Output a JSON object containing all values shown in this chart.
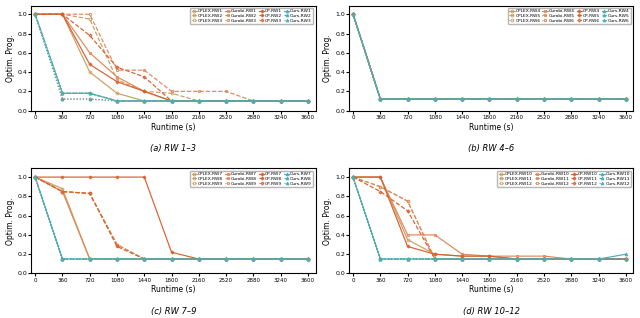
{
  "x_ticks": [
    0,
    360,
    720,
    1080,
    1440,
    1800,
    2160,
    2520,
    2880,
    3240,
    3600
  ],
  "xlabel": "Runtime (s)",
  "ylabel": "Optim. Prog.",
  "xlim": [
    -50,
    3700
  ],
  "ylim": [
    0.0,
    1.09
  ],
  "solver_colors": {
    "CPLEX": "#c8a060",
    "Gurobi": "#e08858",
    "CP": "#d86030",
    "Ours": "#48b0b8"
  },
  "markers": {
    "CPLEX": "o",
    "Gurobi": "s",
    "CP": "P",
    "Ours": "^"
  },
  "linestyles": [
    "solid",
    "dashed",
    "dotted"
  ],
  "subplot_titles": [
    "(a) RW 1–3",
    "(b) RW 4–6",
    "(c) RW 7–9",
    "(d) RW 10–12"
  ],
  "subplots": [
    {
      "rw_labels": [
        "RW1",
        "RW2",
        "RW3"
      ],
      "series": {
        "CPLEX": {
          "RW1": [
            1.0,
            1.0,
            0.4,
            0.18,
            0.1,
            0.1,
            0.1,
            0.1,
            0.1,
            0.1,
            0.1
          ],
          "RW2": [
            1.0,
            1.0,
            0.95,
            0.32,
            0.2,
            0.18,
            0.1,
            0.1,
            0.1,
            0.1,
            0.1
          ],
          "RW3": [
            1.0,
            0.18,
            0.18,
            0.1,
            0.1,
            0.1,
            0.1,
            0.1,
            0.1,
            0.1,
            0.1
          ]
        },
        "Gurobi": {
          "RW1": [
            1.0,
            1.0,
            0.6,
            0.35,
            0.2,
            0.1,
            0.1,
            0.1,
            0.1,
            0.1,
            0.1
          ],
          "RW2": [
            1.0,
            1.0,
            1.0,
            0.42,
            0.42,
            0.2,
            0.2,
            0.2,
            0.1,
            0.1,
            0.1
          ],
          "RW3": [
            1.0,
            0.18,
            0.18,
            0.1,
            0.1,
            0.1,
            0.1,
            0.1,
            0.1,
            0.1,
            0.1
          ]
        },
        "CP": {
          "RW1": [
            1.0,
            1.0,
            0.48,
            0.3,
            0.2,
            0.1,
            0.1,
            0.1,
            0.1,
            0.1,
            0.1
          ],
          "RW2": [
            1.0,
            1.0,
            0.78,
            0.45,
            0.35,
            0.1,
            0.1,
            0.1,
            0.1,
            0.1,
            0.1
          ],
          "RW3": [
            1.0,
            0.12,
            0.12,
            0.1,
            0.1,
            0.1,
            0.1,
            0.1,
            0.1,
            0.1,
            0.1
          ]
        },
        "Ours": {
          "RW1": [
            1.0,
            0.18,
            0.18,
            0.1,
            0.1,
            0.1,
            0.1,
            0.1,
            0.1,
            0.1,
            0.1
          ],
          "RW2": [
            1.0,
            0.18,
            0.18,
            0.1,
            0.1,
            0.1,
            0.1,
            0.1,
            0.1,
            0.1,
            0.1
          ],
          "RW3": [
            1.0,
            0.12,
            0.12,
            0.1,
            0.1,
            0.1,
            0.1,
            0.1,
            0.1,
            0.1,
            0.1
          ]
        }
      }
    },
    {
      "rw_labels": [
        "RW4",
        "RW5",
        "RW6"
      ],
      "series": {
        "CPLEX": {
          "RW4": [
            1.0,
            0.12,
            0.12,
            0.12,
            0.12,
            0.12,
            0.12,
            0.12,
            0.12,
            0.12,
            0.12
          ],
          "RW5": [
            1.0,
            0.12,
            0.12,
            0.12,
            0.12,
            0.12,
            0.12,
            0.12,
            0.12,
            0.12,
            0.12
          ],
          "RW6": [
            1.0,
            0.12,
            0.12,
            0.12,
            0.12,
            0.12,
            0.12,
            0.12,
            0.12,
            0.12,
            0.12
          ]
        },
        "Gurobi": {
          "RW4": [
            1.0,
            0.12,
            0.12,
            0.12,
            0.12,
            0.12,
            0.12,
            0.12,
            0.12,
            0.12,
            0.12
          ],
          "RW5": [
            1.0,
            0.12,
            0.12,
            0.12,
            0.12,
            0.12,
            0.12,
            0.12,
            0.12,
            0.12,
            0.12
          ],
          "RW6": [
            1.0,
            0.12,
            0.12,
            0.12,
            0.12,
            0.12,
            0.12,
            0.12,
            0.12,
            0.12,
            0.12
          ]
        },
        "CP": {
          "RW4": [
            1.0,
            0.12,
            0.12,
            0.12,
            0.12,
            0.12,
            0.12,
            0.12,
            0.12,
            0.12,
            0.12
          ],
          "RW5": [
            1.0,
            0.12,
            0.12,
            0.12,
            0.12,
            0.12,
            0.12,
            0.12,
            0.12,
            0.12,
            0.12
          ],
          "RW6": [
            1.0,
            0.12,
            0.12,
            0.12,
            0.12,
            0.12,
            0.12,
            0.12,
            0.12,
            0.12,
            0.12
          ]
        },
        "Ours": {
          "RW4": [
            1.0,
            0.12,
            0.12,
            0.12,
            0.12,
            0.12,
            0.12,
            0.12,
            0.12,
            0.12,
            0.12
          ],
          "RW5": [
            1.0,
            0.12,
            0.12,
            0.12,
            0.12,
            0.12,
            0.12,
            0.12,
            0.12,
            0.12,
            0.12
          ],
          "RW6": [
            1.0,
            0.12,
            0.12,
            0.12,
            0.12,
            0.12,
            0.12,
            0.12,
            0.12,
            0.12,
            0.12
          ]
        }
      }
    },
    {
      "rw_labels": [
        "RW7",
        "RW8",
        "RW9"
      ],
      "series": {
        "CPLEX": {
          "RW7": [
            1.0,
            0.88,
            0.15,
            0.15,
            0.15,
            0.15,
            0.15,
            0.15,
            0.15,
            0.15,
            0.15
          ],
          "RW8": [
            1.0,
            0.85,
            0.83,
            0.3,
            0.15,
            0.15,
            0.15,
            0.15,
            0.15,
            0.15,
            0.15
          ],
          "RW9": [
            1.0,
            0.15,
            0.15,
            0.15,
            0.15,
            0.15,
            0.15,
            0.15,
            0.15,
            0.15,
            0.15
          ]
        },
        "Gurobi": {
          "RW7": [
            1.0,
            0.85,
            0.15,
            0.15,
            0.15,
            0.15,
            0.15,
            0.15,
            0.15,
            0.15,
            0.15
          ],
          "RW8": [
            1.0,
            0.85,
            0.83,
            0.3,
            0.15,
            0.15,
            0.15,
            0.15,
            0.15,
            0.15,
            0.15
          ],
          "RW9": [
            1.0,
            0.15,
            0.15,
            0.15,
            0.15,
            0.15,
            0.15,
            0.15,
            0.15,
            0.15,
            0.15
          ]
        },
        "CP": {
          "RW7": [
            1.0,
            1.0,
            1.0,
            1.0,
            1.0,
            0.22,
            0.15,
            0.15,
            0.15,
            0.15,
            0.15
          ],
          "RW8": [
            1.0,
            0.85,
            0.83,
            0.28,
            0.15,
            0.15,
            0.15,
            0.15,
            0.15,
            0.15,
            0.15
          ],
          "RW9": [
            1.0,
            0.15,
            0.15,
            0.15,
            0.15,
            0.15,
            0.15,
            0.15,
            0.15,
            0.15,
            0.15
          ]
        },
        "Ours": {
          "RW7": [
            1.0,
            0.15,
            0.15,
            0.15,
            0.15,
            0.15,
            0.15,
            0.15,
            0.15,
            0.15,
            0.15
          ],
          "RW8": [
            1.0,
            0.15,
            0.15,
            0.15,
            0.15,
            0.15,
            0.15,
            0.15,
            0.15,
            0.15,
            0.15
          ],
          "RW9": [
            1.0,
            0.15,
            0.15,
            0.15,
            0.15,
            0.15,
            0.15,
            0.15,
            0.15,
            0.15,
            0.15
          ]
        }
      }
    },
    {
      "rw_labels": [
        "RW10",
        "RW11",
        "RW12"
      ],
      "series": {
        "CPLEX": {
          "RW10": [
            1.0,
            1.0,
            0.35,
            0.2,
            0.18,
            0.18,
            0.15,
            0.15,
            0.15,
            0.15,
            0.15
          ],
          "RW11": [
            1.0,
            0.9,
            0.75,
            0.15,
            0.15,
            0.15,
            0.15,
            0.15,
            0.15,
            0.15,
            0.15
          ],
          "RW12": [
            1.0,
            0.15,
            0.15,
            0.15,
            0.15,
            0.15,
            0.15,
            0.15,
            0.15,
            0.15,
            0.15
          ]
        },
        "Gurobi": {
          "RW10": [
            1.0,
            1.0,
            0.4,
            0.4,
            0.2,
            0.18,
            0.18,
            0.18,
            0.15,
            0.15,
            0.15
          ],
          "RW11": [
            1.0,
            0.9,
            0.75,
            0.15,
            0.15,
            0.15,
            0.15,
            0.15,
            0.15,
            0.15,
            0.15
          ],
          "RW12": [
            1.0,
            0.15,
            0.15,
            0.15,
            0.15,
            0.15,
            0.15,
            0.15,
            0.15,
            0.15,
            0.15
          ]
        },
        "CP": {
          "RW10": [
            1.0,
            1.0,
            0.28,
            0.2,
            0.18,
            0.18,
            0.15,
            0.15,
            0.15,
            0.15,
            0.15
          ],
          "RW11": [
            1.0,
            0.85,
            0.65,
            0.15,
            0.15,
            0.15,
            0.15,
            0.15,
            0.15,
            0.15,
            0.15
          ],
          "RW12": [
            1.0,
            0.15,
            0.15,
            0.15,
            0.15,
            0.15,
            0.15,
            0.15,
            0.15,
            0.15,
            0.15
          ]
        },
        "Ours": {
          "RW10": [
            1.0,
            0.15,
            0.15,
            0.15,
            0.15,
            0.15,
            0.15,
            0.15,
            0.15,
            0.15,
            0.2
          ],
          "RW11": [
            1.0,
            0.15,
            0.15,
            0.15,
            0.15,
            0.15,
            0.15,
            0.15,
            0.15,
            0.15,
            0.15
          ],
          "RW12": [
            1.0,
            0.15,
            0.15,
            0.15,
            0.15,
            0.15,
            0.15,
            0.15,
            0.15,
            0.15,
            0.15
          ]
        }
      }
    }
  ]
}
